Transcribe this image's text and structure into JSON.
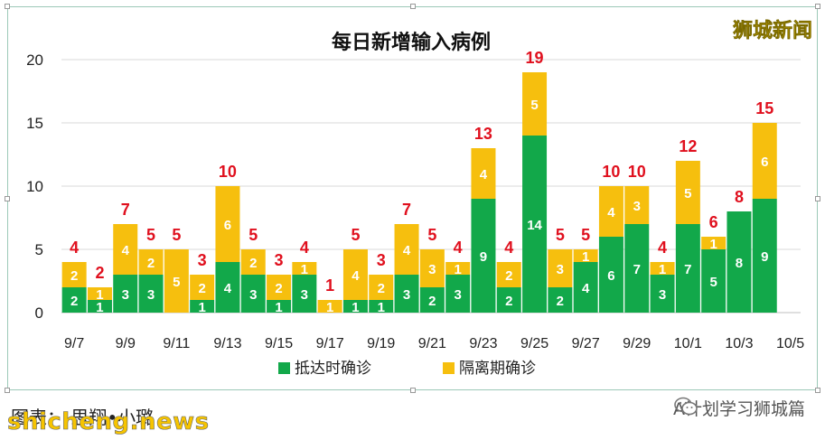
{
  "brand": "狮城新闻",
  "caption": "图表： 思翔•小璐",
  "watermark": "shicheng.news",
  "account": "A计划学习狮城篇",
  "colors": {
    "green": "#12a84a",
    "yellow": "#f6bf0e",
    "total_label": "#e0101e"
  },
  "chart_data": {
    "type": "bar",
    "stacked": true,
    "title": "每日新增输入病例",
    "categories": [
      "9/7",
      "9/8",
      "9/9",
      "9/10",
      "9/11",
      "9/12",
      "9/13",
      "9/14",
      "9/15",
      "9/16",
      "9/17",
      "9/18",
      "9/19",
      "9/20",
      "9/21",
      "9/22",
      "9/23",
      "9/24",
      "9/25",
      "9/26",
      "9/27",
      "9/28",
      "9/29",
      "9/30",
      "10/1",
      "10/2",
      "10/3",
      "10/4"
    ],
    "x_tick_labels": [
      "9/7",
      "9/9",
      "9/11",
      "9/13",
      "9/15",
      "9/17",
      "9/19",
      "9/21",
      "9/23",
      "9/25",
      "9/27",
      "9/29",
      "10/1",
      "10/3",
      "10/5"
    ],
    "series": [
      {
        "name": "抵达时确诊",
        "color": "#12a84a",
        "values": [
          2,
          1,
          3,
          3,
          0,
          1,
          4,
          3,
          1,
          3,
          0,
          1,
          1,
          3,
          2,
          3,
          9,
          2,
          14,
          2,
          4,
          6,
          7,
          3,
          7,
          5,
          8,
          9
        ]
      },
      {
        "name": "隔离期确诊",
        "color": "#f6bf0e",
        "values": [
          2,
          1,
          4,
          2,
          5,
          2,
          6,
          2,
          2,
          1,
          1,
          4,
          2,
          4,
          3,
          1,
          4,
          2,
          5,
          3,
          1,
          4,
          3,
          1,
          5,
          1,
          0,
          6
        ]
      }
    ],
    "totals": [
      4,
      2,
      7,
      5,
      5,
      3,
      10,
      5,
      3,
      4,
      1,
      5,
      3,
      7,
      5,
      4,
      13,
      4,
      19,
      5,
      5,
      10,
      10,
      4,
      12,
      6,
      8,
      15
    ],
    "ylim": [
      0,
      20
    ],
    "yticks": [
      0,
      5,
      10,
      15,
      20
    ],
    "grid": true,
    "legend_position": "bottom"
  }
}
